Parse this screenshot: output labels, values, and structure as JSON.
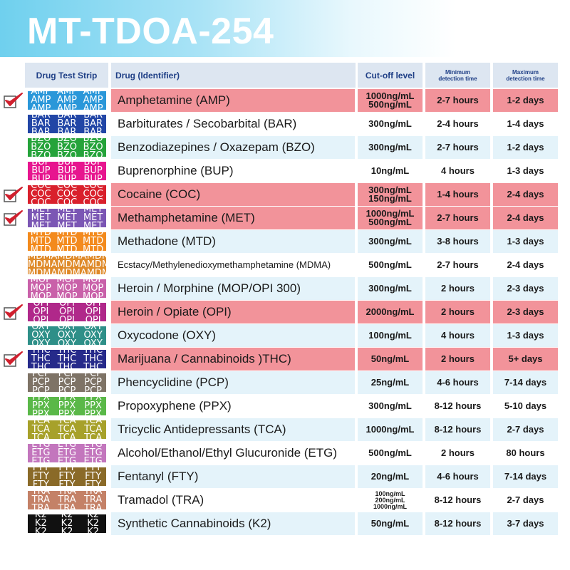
{
  "title": "MT-TDOA-254",
  "headers": {
    "strip": "Drug Test Strip",
    "drug": "Drug (Identifier)",
    "cutoff": "Cut-off level",
    "min_line1": "Minimum",
    "min_line2": "detection time",
    "max_line1": "Maximum",
    "max_line2": "detection time"
  },
  "colors": {
    "highlight_row": "#f2939a",
    "light_row": "#e4f3fa",
    "white_row": "#ffffff",
    "header_bg": "#dde6f1",
    "header_text": "#1f3f86",
    "check": "#d0202e"
  },
  "rows": [
    {
      "code": "AMP",
      "drug": "Amphetamine (AMP)",
      "cutoff": [
        "1000ng/mL",
        "500ng/mL"
      ],
      "min": "2-7 hours",
      "max": "1-2 days",
      "checked": true,
      "strip_color": "#2a97d9"
    },
    {
      "code": "BAR",
      "drug": "Barbiturates / Secobarbital (BAR)",
      "cutoff": [
        "300ng/mL"
      ],
      "min": "2-4 hours",
      "max": "1-4 days",
      "checked": false,
      "strip_color": "#2246a6"
    },
    {
      "code": "BZO",
      "drug": "Benzodiazepines / Oxazepam (BZO)",
      "cutoff": [
        "300ng/mL"
      ],
      "min": "2-7 hours",
      "max": "1-2 days",
      "checked": false,
      "strip_color": "#25a33a"
    },
    {
      "code": "BUP",
      "drug": "Buprenorphine (BUP)",
      "cutoff": [
        "10ng/mL"
      ],
      "min": "4 hours",
      "max": "1-3 days",
      "checked": false,
      "strip_color": "#e7158f"
    },
    {
      "code": "COC",
      "drug": "Cocaine (COC)",
      "cutoff": [
        "300ng/mL",
        "150ng/mL"
      ],
      "min": "1-4 hours",
      "max": "2-4 days",
      "checked": true,
      "strip_color": "#d9202c"
    },
    {
      "code": "MET",
      "drug": "Methamphetamine (MET)",
      "cutoff": [
        "1000ng/mL",
        "500ng/mL"
      ],
      "min": "2-7 hours",
      "max": "2-4 days",
      "checked": true,
      "strip_color": "#7b56b4"
    },
    {
      "code": "MTD",
      "drug": "Methadone (MTD)",
      "cutoff": [
        "300ng/mL"
      ],
      "min": "3-8 hours",
      "max": "1-3 days",
      "checked": false,
      "strip_color": "#f38a1d"
    },
    {
      "code": "MDMA",
      "drug": "Ecstacy/Methylenedioxymethamphetamine (MDMA)",
      "cutoff": [
        "500ng/mL"
      ],
      "min": "2-7 hours",
      "max": "2-4 days",
      "checked": false,
      "strip_color": "#df8a2a"
    },
    {
      "code": "MOP",
      "drug": "Heroin / Morphine (MOP/OPI 300)",
      "cutoff": [
        "300ng/mL"
      ],
      "min": "2 hours",
      "max": "2-3 days",
      "checked": false,
      "strip_color": "#c961a9"
    },
    {
      "code": "OPI",
      "drug": "Heroin / Opiate (OPI)",
      "cutoff": [
        "2000ng/mL"
      ],
      "min": "2 hours",
      "max": "2-3 days",
      "checked": true,
      "strip_color": "#b0288a"
    },
    {
      "code": "OXY",
      "drug": "Oxycodone (OXY)",
      "cutoff": [
        "100ng/mL"
      ],
      "min": "4 hours",
      "max": "1-3 days",
      "checked": false,
      "strip_color": "#2e8f88"
    },
    {
      "code": "THC",
      "drug": "Marijuana / Cannabinoids )THC)",
      "cutoff": [
        "50ng/mL"
      ],
      "min": "2 hours",
      "max": "5+ days",
      "checked": true,
      "strip_color": "#262a8a"
    },
    {
      "code": "PCP",
      "drug": "Phencyclidine (PCP)",
      "cutoff": [
        "25ng/mL"
      ],
      "min": "4-6 hours",
      "max": "7-14 days",
      "checked": false,
      "strip_color": "#7e7366"
    },
    {
      "code": "PPX",
      "drug": "Propoxyphene (PPX)",
      "cutoff": [
        "300ng/mL"
      ],
      "min": "8-12 hours",
      "max": "5-10 days",
      "checked": false,
      "strip_color": "#5ab848"
    },
    {
      "code": "TCA",
      "drug": "Tricyclic Antidepressants (TCA)",
      "cutoff": [
        "1000ng/mL"
      ],
      "min": "8-12 hours",
      "max": "2-7 days",
      "checked": false,
      "strip_color": "#a7a12a"
    },
    {
      "code": "ETG",
      "drug": "Alcohol/Ethanol/Ethyl Glucuronide (ETG)",
      "cutoff": [
        "500ng/mL"
      ],
      "min": "2 hours",
      "max": "80 hours",
      "checked": false,
      "strip_color": "#c376bd"
    },
    {
      "code": "FTY",
      "drug": "Fentanyl (FTY)",
      "cutoff": [
        "20ng/mL"
      ],
      "min": "4-6 hours",
      "max": "7-14 days",
      "checked": false,
      "strip_color": "#8a6a28"
    },
    {
      "code": "TRA",
      "drug": "Tramadol (TRA)",
      "cutoff": [
        "100ng/mL",
        "200ng/mL",
        "1000ng/mL"
      ],
      "min": "8-12 hours",
      "max": "2-7 days",
      "checked": false,
      "strip_color": "#c48167"
    },
    {
      "code": "K2",
      "drug": "Synthetic Cannabinoids (K2)",
      "cutoff": [
        "50ng/mL"
      ],
      "min": "8-12 hours",
      "max": "3-7 days",
      "checked": false,
      "strip_color": "#111111"
    }
  ]
}
